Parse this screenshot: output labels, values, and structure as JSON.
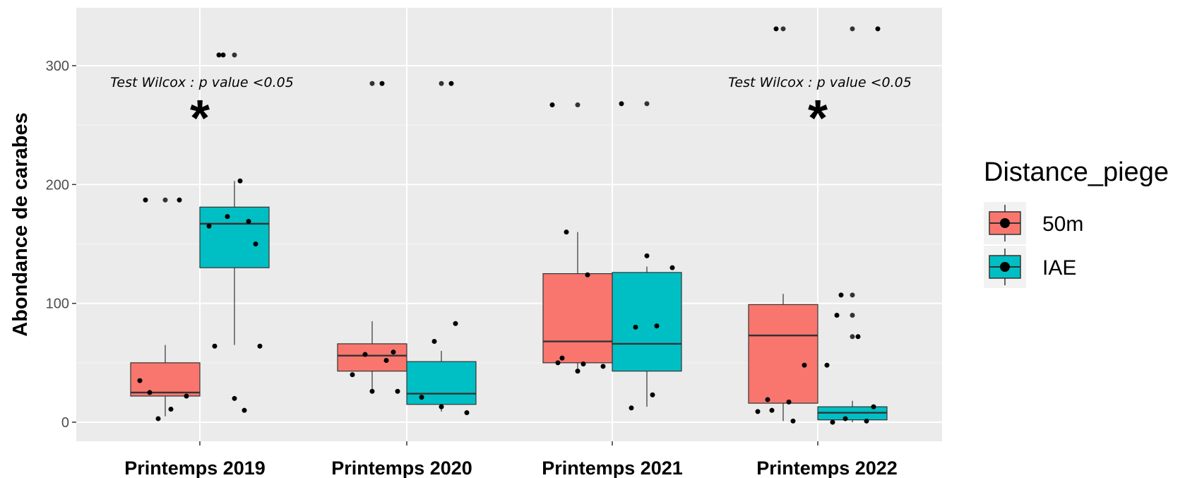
{
  "chart_data": {
    "type": "box",
    "ylabel": "Abondance de carabes",
    "xlabel": "",
    "ylim": [
      -15,
      350
    ],
    "y_ticks": [
      0,
      100,
      200,
      300
    ],
    "categories": [
      "Printemps 2019",
      "Printemps 2020",
      "Printemps 2021",
      "Printemps 2022"
    ],
    "grid": true,
    "legend": {
      "title": "Distance_piege",
      "position": "right",
      "entries": [
        {
          "label": "50m",
          "color": "#F8766D"
        },
        {
          "label": "IAE",
          "color": "#00BFC4"
        }
      ]
    },
    "series": [
      {
        "name": "50m",
        "color": "#F8766D",
        "boxes": [
          {
            "category": "Printemps 2019",
            "min": 5,
            "q1": 22,
            "median": 25,
            "q3": 50,
            "max": 65,
            "outliers": [
              187
            ],
            "points": [
              25,
              11,
              35,
              22,
              3,
              187,
              187
            ]
          },
          {
            "category": "Printemps 2020",
            "min": 26,
            "q1": 43,
            "median": 56,
            "q3": 66,
            "max": 85,
            "outliers": [
              285
            ],
            "points": [
              59,
              57,
              52,
              40,
              26,
              26,
              285
            ]
          },
          {
            "category": "Printemps 2021",
            "min": 43,
            "q1": 50,
            "median": 68,
            "q3": 125,
            "max": 160,
            "outliers": [
              267
            ],
            "points": [
              50,
              47,
              43,
              124,
              160,
              54,
              49,
              267
            ]
          },
          {
            "category": "Printemps 2022",
            "min": 1,
            "q1": 16,
            "median": 73,
            "q3": 99,
            "max": 108,
            "outliers": [
              331
            ],
            "points": [
              1,
              10,
              19,
              17,
              9,
              48,
              331
            ]
          }
        ]
      },
      {
        "name": "IAE",
        "color": "#00BFC4",
        "boxes": [
          {
            "category": "Printemps 2019",
            "min": 65,
            "q1": 130,
            "median": 167,
            "q3": 181,
            "max": 203,
            "outliers": [
              309
            ],
            "points": [
              203,
              165,
              150,
              173,
              169,
              64,
              64,
              20,
              10,
              309,
              309
            ]
          },
          {
            "category": "Printemps 2020",
            "min": 9,
            "q1": 15,
            "median": 24,
            "q3": 51,
            "max": 60,
            "outliers": [
              285
            ],
            "points": [
              68,
              83,
              21,
              8,
              13,
              285
            ]
          },
          {
            "category": "Printemps 2021",
            "min": 13,
            "q1": 43,
            "median": 66,
            "q3": 126,
            "max": 131,
            "outliers": [
              268
            ],
            "points": [
              130,
              140,
              81,
              80,
              12,
              23,
              268
            ]
          },
          {
            "category": "Printemps 2022",
            "min": 0,
            "q1": 2,
            "median": 8,
            "q3": 13,
            "max": 18,
            "outliers": [
              107,
              90,
              72,
              331
            ],
            "points": [
              107,
              90,
              72,
              48,
              13,
              3,
              1,
              0,
              331
            ]
          }
        ]
      }
    ],
    "annotations": [
      {
        "category": "Printemps 2019",
        "text": "Test Wilcox : p value <0.05",
        "mark": "*"
      },
      {
        "category": "Printemps 2022",
        "text": "Test Wilcox : p value <0.05",
        "mark": "*"
      }
    ]
  }
}
